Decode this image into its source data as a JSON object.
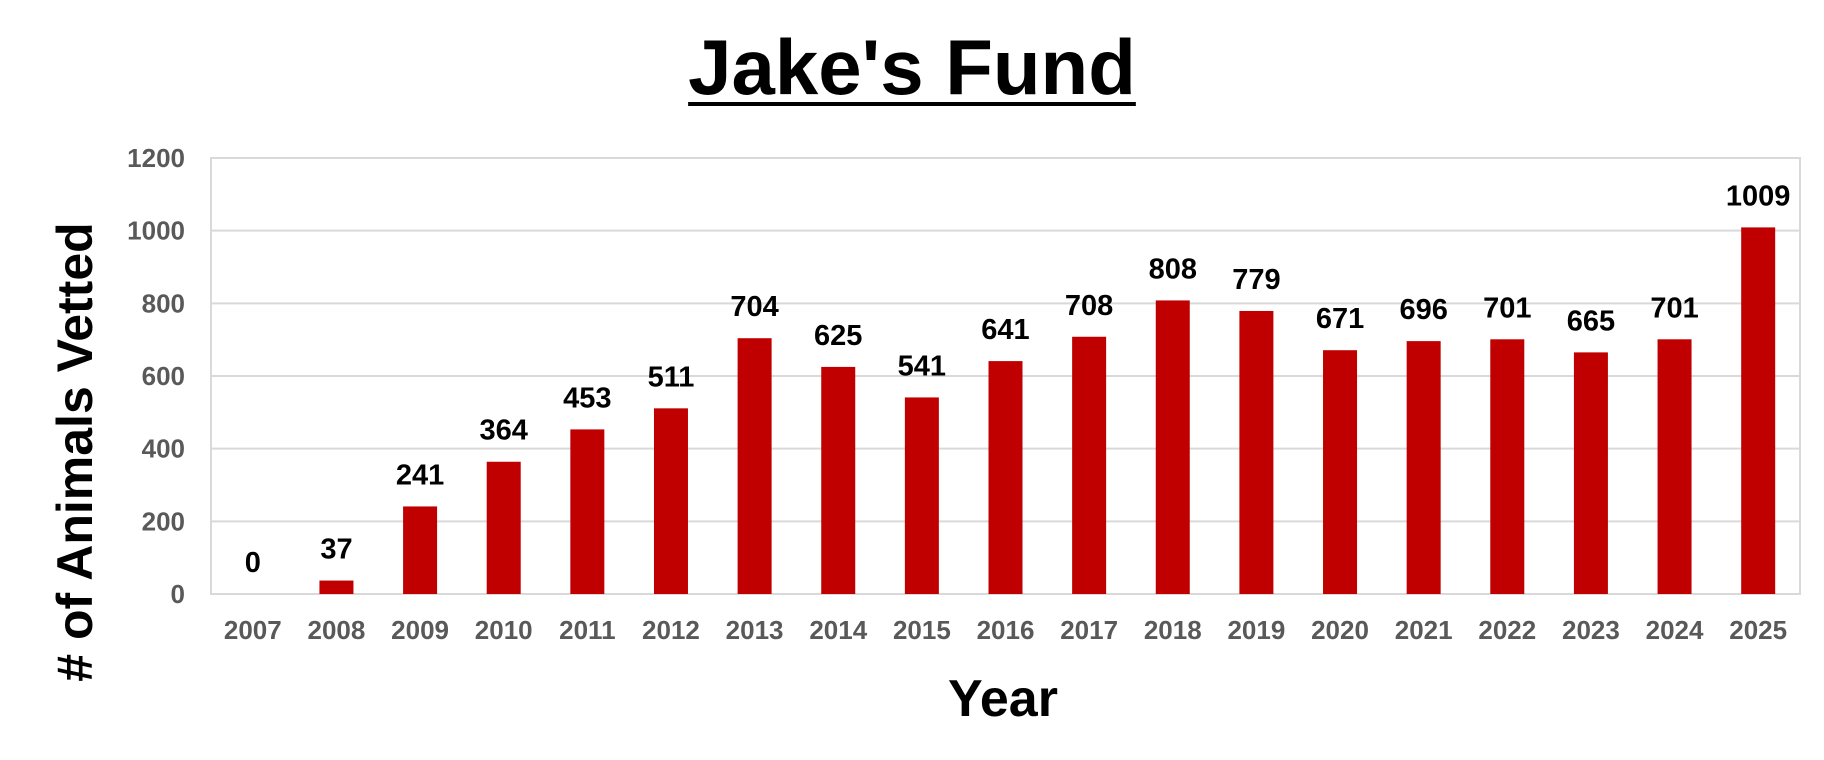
{
  "chart_data": {
    "type": "bar",
    "title": "Jake's Fund",
    "xlabel": "Year",
    "ylabel": "# of Animals Vetted",
    "categories": [
      "2007",
      "2008",
      "2009",
      "2010",
      "2011",
      "2012",
      "2013",
      "2014",
      "2015",
      "2016",
      "2017",
      "2018",
      "2019",
      "2020",
      "2021",
      "2022",
      "2023",
      "2024",
      "2025"
    ],
    "values": [
      0,
      37,
      241,
      364,
      453,
      511,
      704,
      625,
      541,
      641,
      708,
      808,
      779,
      671,
      696,
      701,
      665,
      701,
      1009
    ],
    "data_labels": [
      "0",
      "37",
      "241",
      "364",
      "453",
      "511",
      "704",
      "625",
      "541",
      "641",
      "708",
      "808",
      "779",
      "671",
      "696",
      "701",
      "665",
      "701",
      "1009"
    ],
    "ylim": [
      0,
      1200
    ],
    "yticks": [
      "0",
      "200",
      "400",
      "600",
      "800",
      "1000",
      "1200"
    ],
    "grid": true,
    "legend": "none",
    "bar_color": "#C00000",
    "grid_color": "#D9D9D9"
  }
}
